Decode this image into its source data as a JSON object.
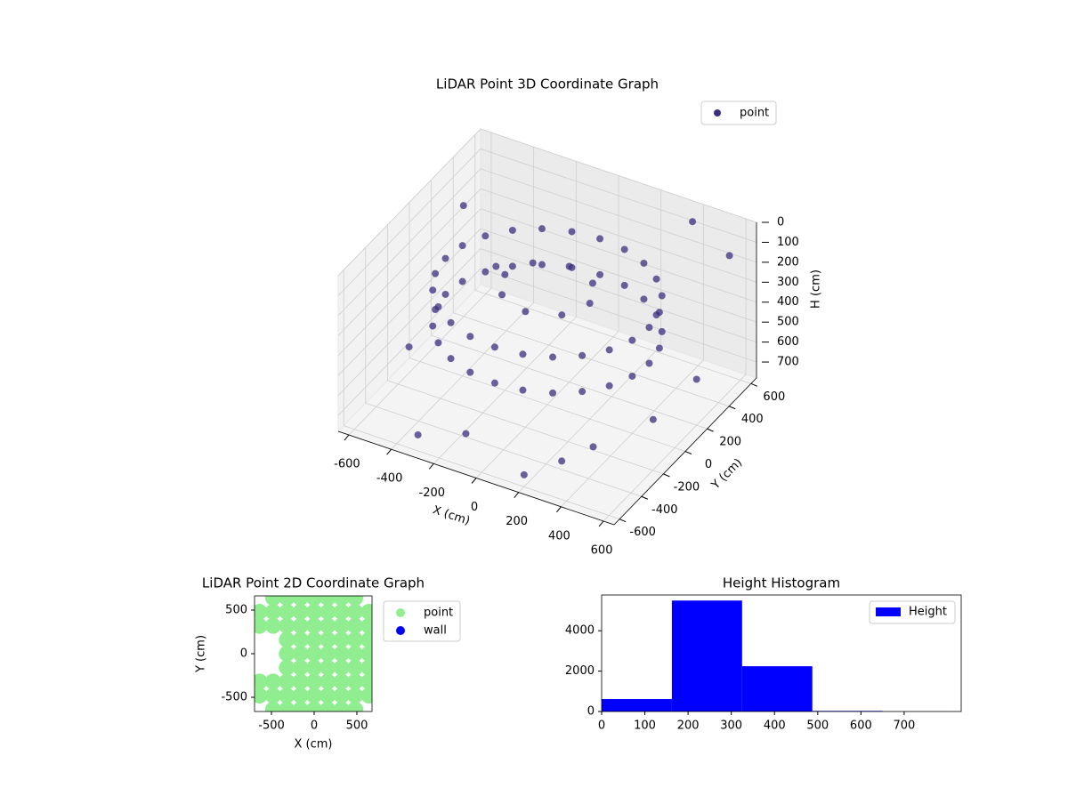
{
  "chart_data": [
    {
      "type": "scatter3d",
      "title": "LiDAR Point 3D Coordinate Graph",
      "x_label": "X (cm)",
      "y_label": "Y (cm)",
      "z_label": "H (cm)",
      "xlim": [
        -650,
        650
      ],
      "ylim": [
        -650,
        650
      ],
      "zlim": [
        780,
        0
      ],
      "xticks": [
        -600,
        -400,
        -200,
        0,
        200,
        400,
        600
      ],
      "yticks": [
        -600,
        -400,
        -200,
        0,
        200,
        400,
        600
      ],
      "zticks": [
        0,
        100,
        200,
        300,
        400,
        500,
        600,
        700
      ],
      "legend": "upper right",
      "grid": true,
      "series": [
        {
          "name": "point",
          "color": "#3b2f7e",
          "x": [
            480,
            464,
            416,
            339,
            240,
            124,
            0,
            -124,
            -240,
            -339,
            -416,
            -464,
            -480,
            -464,
            -416,
            -339,
            -240,
            -124,
            0,
            124,
            240,
            339,
            416,
            464,
            480,
            464,
            416,
            339,
            240,
            124,
            0,
            -124,
            -240,
            -339,
            -416,
            -464,
            -480,
            -464,
            -416,
            -339,
            -240,
            -124,
            0,
            124,
            240,
            339,
            416,
            464,
            200,
            141,
            0,
            -141,
            -200,
            -141,
            0,
            141,
            -600,
            -550,
            500,
            600,
            -300,
            200,
            400,
            -500,
            550,
            -100,
            300,
            600
          ],
          "y": [
            0,
            124,
            240,
            339,
            416,
            464,
            480,
            464,
            416,
            339,
            240,
            124,
            0,
            -124,
            -240,
            -339,
            -416,
            -464,
            -480,
            -464,
            -416,
            -339,
            -240,
            -124,
            0,
            124,
            240,
            339,
            416,
            464,
            480,
            464,
            416,
            339,
            240,
            124,
            0,
            -124,
            -240,
            -339,
            -416,
            -464,
            -480,
            -464,
            -416,
            -339,
            -240,
            -124,
            0,
            141,
            200,
            141,
            0,
            -141,
            -200,
            -141,
            -100,
            300,
            -550,
            500,
            -600,
            -600,
            550,
            500,
            -100,
            -550,
            -450,
            200
          ],
          "z": [
            220,
            220,
            220,
            220,
            220,
            220,
            220,
            220,
            220,
            220,
            220,
            220,
            220,
            220,
            220,
            220,
            220,
            220,
            220,
            220,
            220,
            220,
            220,
            220,
            400,
            400,
            400,
            400,
            400,
            400,
            400,
            400,
            400,
            400,
            400,
            400,
            400,
            400,
            400,
            400,
            400,
            400,
            400,
            400,
            400,
            400,
            400,
            400,
            200,
            200,
            200,
            200,
            200,
            200,
            200,
            200,
            650,
            150,
            500,
            100,
            700,
            720,
            30,
            550,
            600,
            650,
            700,
            550
          ]
        }
      ]
    },
    {
      "type": "scatter",
      "title": "LiDAR Point 2D Coordinate Graph",
      "x_label": "X (cm)",
      "y_label": "Y (cm)",
      "xlim": [
        -698,
        677
      ],
      "ylim": [
        -663,
        663
      ],
      "xticks": [
        -500,
        0,
        500
      ],
      "yticks": [
        -500,
        0,
        500
      ],
      "legend": "outside right",
      "series": [
        {
          "name": "point",
          "color": "#90ee90",
          "x": [
            -480,
            -320,
            -160,
            0,
            160,
            320,
            480,
            -640,
            -480,
            -320,
            -160,
            0,
            160,
            320,
            480,
            640,
            -640,
            -480,
            -320,
            -160,
            0,
            160,
            320,
            480,
            640,
            -320,
            -160,
            0,
            160,
            320,
            480,
            640,
            -320,
            -160,
            0,
            160,
            320,
            480,
            640,
            -320,
            -160,
            0,
            160,
            320,
            480,
            640,
            -640,
            -480,
            -320,
            -160,
            0,
            160,
            320,
            480,
            640,
            -640,
            -480,
            -320,
            -160,
            0,
            160,
            320,
            480,
            640,
            -480,
            -320,
            -160,
            0,
            160,
            320,
            480
          ],
          "y": [
            640,
            640,
            640,
            640,
            640,
            640,
            640,
            480,
            480,
            480,
            480,
            480,
            480,
            480,
            480,
            480,
            320,
            320,
            320,
            320,
            320,
            320,
            320,
            320,
            320,
            160,
            160,
            160,
            160,
            160,
            160,
            160,
            0,
            0,
            0,
            0,
            0,
            0,
            0,
            -160,
            -160,
            -160,
            -160,
            -160,
            -160,
            -160,
            -320,
            -320,
            -320,
            -320,
            -320,
            -320,
            -320,
            -320,
            -320,
            -480,
            -480,
            -480,
            -480,
            -480,
            -480,
            -480,
            -480,
            -480,
            -640,
            -640,
            -640,
            -640,
            -640,
            -640,
            -640
          ]
        },
        {
          "name": "wall",
          "color": "#0000ff",
          "x": [],
          "y": []
        }
      ]
    },
    {
      "type": "histogram",
      "title": "Height Histogram",
      "name": "Height",
      "color": "#0000ff",
      "bins": [
        0,
        162.5,
        325,
        487.5,
        650,
        812.5
      ],
      "counts": [
        615,
        5495,
        2242,
        30,
        3
      ],
      "xlim": [
        0,
        832
      ],
      "ylim": [
        0,
        5770
      ],
      "xticks": [
        0,
        100,
        200,
        300,
        400,
        500,
        600,
        700
      ],
      "yticks": [
        0,
        2000,
        4000
      ],
      "legend": "upper right"
    }
  ]
}
